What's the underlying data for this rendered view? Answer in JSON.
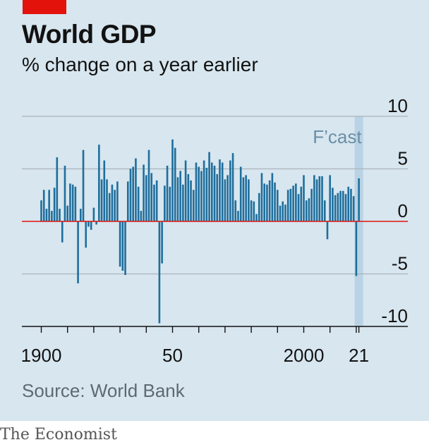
{
  "header": {
    "title": "World GDP",
    "subtitle": "% change on a year earlier"
  },
  "footer": {
    "source": "Source: World Bank",
    "brand": "The Economist"
  },
  "colors": {
    "background": "#d7e6ef",
    "bar": "#1f6e9c",
    "zero_line": "#e3120b",
    "forecast_band": "#b9d3e4",
    "forecast_label": "#6b8fa6",
    "gridline": "#aab4bb",
    "accent": "#e3120b"
  },
  "chart_data": {
    "type": "bar",
    "title": "World GDP",
    "subtitle": "% change on a year earlier",
    "xlabel": "",
    "ylabel": "",
    "ylim": [
      -10,
      10
    ],
    "yticks": [
      10,
      5,
      0,
      -5,
      -10
    ],
    "xtick_labels": [
      {
        "label": "1900",
        "year": 1900
      },
      {
        "label": "50",
        "year": 1950
      },
      {
        "label": "2000",
        "year": 2000
      },
      {
        "label": "21",
        "year": 2021
      }
    ],
    "forecast": {
      "label": "F’cast",
      "from_year": 2021
    },
    "y_axis_position": "right",
    "grid": true,
    "categories": [
      1900,
      1901,
      1902,
      1903,
      1904,
      1905,
      1906,
      1907,
      1908,
      1909,
      1910,
      1911,
      1912,
      1913,
      1914,
      1915,
      1916,
      1917,
      1918,
      1919,
      1920,
      1921,
      1922,
      1923,
      1924,
      1925,
      1926,
      1927,
      1928,
      1929,
      1930,
      1931,
      1932,
      1933,
      1934,
      1935,
      1936,
      1937,
      1938,
      1939,
      1940,
      1941,
      1942,
      1943,
      1944,
      1945,
      1946,
      1947,
      1948,
      1949,
      1950,
      1951,
      1952,
      1953,
      1954,
      1955,
      1956,
      1957,
      1958,
      1959,
      1960,
      1961,
      1962,
      1963,
      1964,
      1965,
      1966,
      1967,
      1968,
      1969,
      1970,
      1971,
      1972,
      1973,
      1974,
      1975,
      1976,
      1977,
      1978,
      1979,
      1980,
      1981,
      1982,
      1983,
      1984,
      1985,
      1986,
      1987,
      1988,
      1989,
      1990,
      1991,
      1992,
      1993,
      1994,
      1995,
      1996,
      1997,
      1998,
      1999,
      2000,
      2001,
      2002,
      2003,
      2004,
      2005,
      2006,
      2007,
      2008,
      2009,
      2010,
      2011,
      2012,
      2013,
      2014,
      2015,
      2016,
      2017,
      2018,
      2019,
      2020,
      2021
    ],
    "values": [
      2.0,
      3.0,
      1.2,
      3.0,
      1.0,
      3.2,
      6.1,
      1.2,
      -2.0,
      5.3,
      1.5,
      3.6,
      3.5,
      3.3,
      -5.9,
      1.2,
      6.8,
      -2.5,
      -0.5,
      -0.8,
      1.3,
      -0.3,
      7.3,
      4.0,
      5.8,
      4.0,
      2.7,
      3.5,
      3.0,
      3.8,
      -4.3,
      -4.7,
      -5.1,
      3.8,
      5.0,
      5.2,
      6.0,
      3.3,
      1.0,
      5.4,
      4.4,
      6.8,
      4.6,
      3.5,
      3.9,
      -9.7,
      -4.0,
      3.4,
      5.3,
      3.3,
      7.8,
      7.0,
      4.2,
      4.8,
      3.5,
      5.8,
      4.5,
      3.9,
      3.0,
      5.6,
      5.2,
      4.8,
      5.8,
      5.1,
      6.6,
      5.6,
      5.3,
      4.5,
      5.9,
      5.6,
      4.0,
      4.4,
      5.8,
      6.5,
      2.0,
      1.0,
      5.2,
      4.2,
      4.4,
      4.0,
      2.0,
      1.9,
      0.7,
      2.7,
      4.6,
      3.6,
      3.5,
      3.9,
      4.6,
      3.7,
      3.0,
      1.5,
      1.9,
      1.6,
      3.0,
      3.1,
      3.4,
      3.6,
      2.6,
      3.3,
      4.4,
      2.0,
      2.2,
      3.1,
      4.4,
      4.0,
      4.3,
      4.3,
      2.0,
      -1.7,
      4.4,
      3.2,
      2.5,
      2.7,
      2.9,
      2.9,
      2.6,
      3.3,
      3.1,
      2.4,
      -5.2,
      4.1
    ]
  }
}
